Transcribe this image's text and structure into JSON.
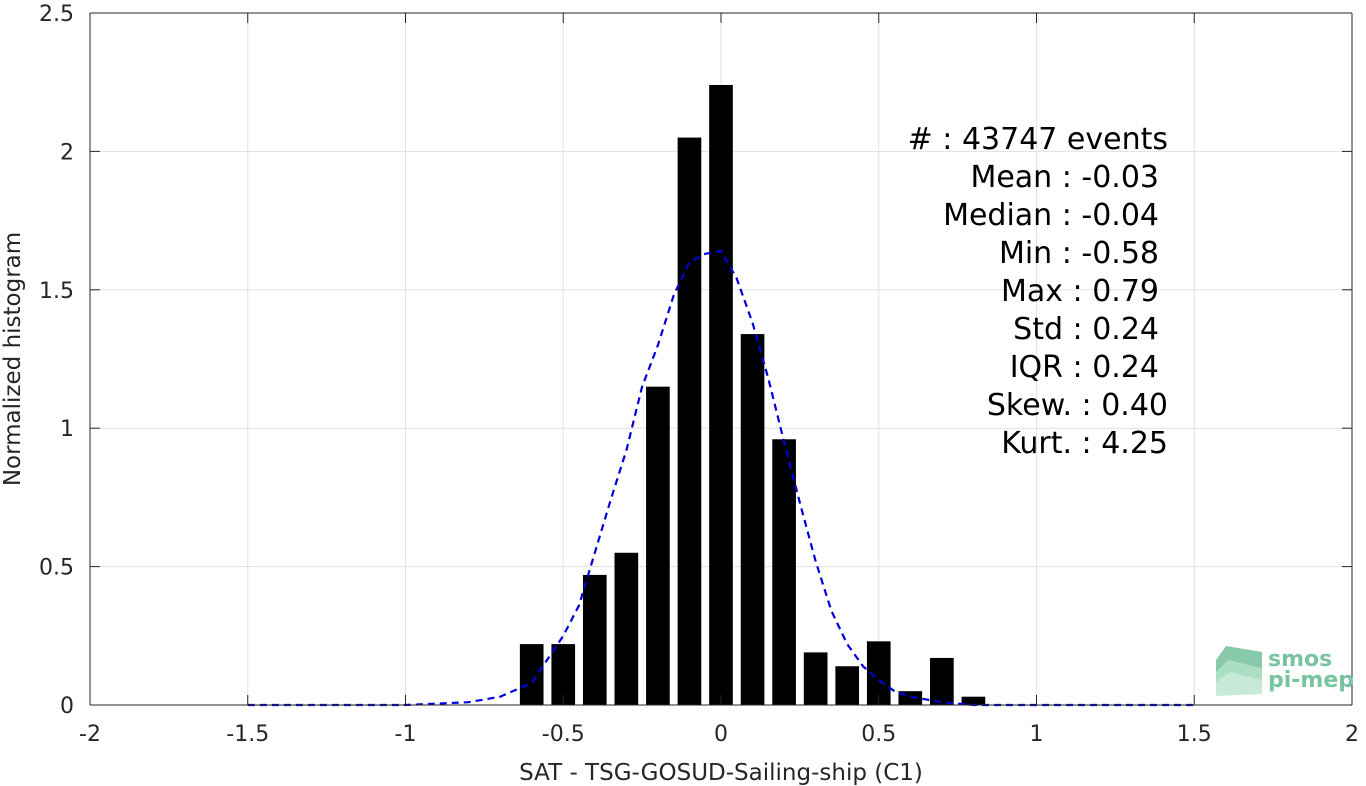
{
  "chart_data": {
    "type": "bar",
    "xlabel": "SAT - TSG-GOSUD-Sailing-ship (C1)",
    "ylabel": "Normalized histogram",
    "xlim": [
      -2,
      2
    ],
    "ylim": [
      0,
      2.5
    ],
    "x_ticks": [
      "-2",
      "-1.5",
      "-1",
      "-0.5",
      "0",
      "0.5",
      "1",
      "1.5",
      "2"
    ],
    "y_ticks": [
      "0",
      "0.5",
      "1",
      "1.5",
      "2",
      "2.5"
    ],
    "grid": true,
    "bin_width": 0.1,
    "bars": {
      "x": [
        -0.6,
        -0.5,
        -0.4,
        -0.3,
        -0.2,
        -0.1,
        0.0,
        0.1,
        0.2,
        0.3,
        0.4,
        0.5,
        0.6,
        0.7,
        0.8
      ],
      "values": [
        0.22,
        0.22,
        0.47,
        0.55,
        1.15,
        2.05,
        2.24,
        1.34,
        0.96,
        0.19,
        0.14,
        0.23,
        0.05,
        0.17,
        0.03
      ],
      "color": "#000000"
    },
    "fit_curve": {
      "style": "dashed",
      "color": "#0000dd",
      "x": [
        -1.5,
        -1.0,
        -0.8,
        -0.7,
        -0.6,
        -0.5,
        -0.45,
        -0.4,
        -0.35,
        -0.3,
        -0.25,
        -0.2,
        -0.15,
        -0.1,
        -0.05,
        0.0,
        0.05,
        0.1,
        0.15,
        0.2,
        0.25,
        0.3,
        0.35,
        0.4,
        0.45,
        0.5,
        0.55,
        0.6,
        0.7,
        0.8,
        1.0,
        1.5
      ],
      "y": [
        0.0,
        0.0,
        0.01,
        0.03,
        0.08,
        0.25,
        0.36,
        0.55,
        0.74,
        0.92,
        1.15,
        1.3,
        1.48,
        1.6,
        1.63,
        1.64,
        1.54,
        1.38,
        1.18,
        0.95,
        0.73,
        0.52,
        0.34,
        0.22,
        0.14,
        0.09,
        0.05,
        0.03,
        0.01,
        0.0,
        0.0,
        0.0
      ]
    },
    "annotations": [
      "#  : 43747 events",
      "Mean : -0.03",
      "Median : -0.04",
      "Min : -0.58",
      "Max : 0.79",
      "Std : 0.24",
      "IQR : 0.24",
      "Skew. : 0.40",
      "Kurt. : 4.25"
    ]
  },
  "logo": {
    "line1": "smos",
    "line2": "pi-mep",
    "color": "#79c4a0"
  }
}
